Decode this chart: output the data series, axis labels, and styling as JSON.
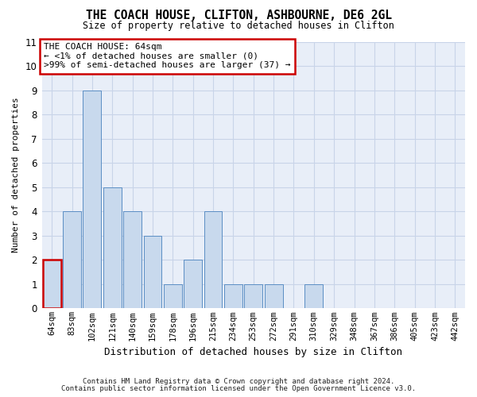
{
  "title": "THE COACH HOUSE, CLIFTON, ASHBOURNE, DE6 2GL",
  "subtitle": "Size of property relative to detached houses in Clifton",
  "xlabel": "Distribution of detached houses by size in Clifton",
  "ylabel": "Number of detached properties",
  "footnote1": "Contains HM Land Registry data © Crown copyright and database right 2024.",
  "footnote2": "Contains public sector information licensed under the Open Government Licence v3.0.",
  "categories": [
    "64sqm",
    "83sqm",
    "102sqm",
    "121sqm",
    "140sqm",
    "159sqm",
    "178sqm",
    "196sqm",
    "215sqm",
    "234sqm",
    "253sqm",
    "272sqm",
    "291sqm",
    "310sqm",
    "329sqm",
    "348sqm",
    "367sqm",
    "386sqm",
    "405sqm",
    "423sqm",
    "442sqm"
  ],
  "values": [
    2,
    4,
    9,
    5,
    4,
    3,
    1,
    2,
    4,
    1,
    1,
    1,
    0,
    1,
    0,
    0,
    0,
    0,
    0,
    0,
    0
  ],
  "bar_color": "#c8d9ed",
  "bar_edge_color": "#5b8ec4",
  "highlight_index": 0,
  "highlight_edge_color": "#cc0000",
  "annotation_title": "THE COACH HOUSE: 64sqm",
  "annotation_line1": "← <1% of detached houses are smaller (0)",
  "annotation_line2": ">99% of semi-detached houses are larger (37) →",
  "annotation_box_facecolor": "#ffffff",
  "annotation_box_edge": "#cc0000",
  "ylim": [
    0,
    11
  ],
  "yticks": [
    0,
    1,
    2,
    3,
    4,
    5,
    6,
    7,
    8,
    9,
    10,
    11
  ],
  "grid_color": "#c8d4e8",
  "bg_color": "#ffffff",
  "plot_bg_color": "#e8eef8"
}
